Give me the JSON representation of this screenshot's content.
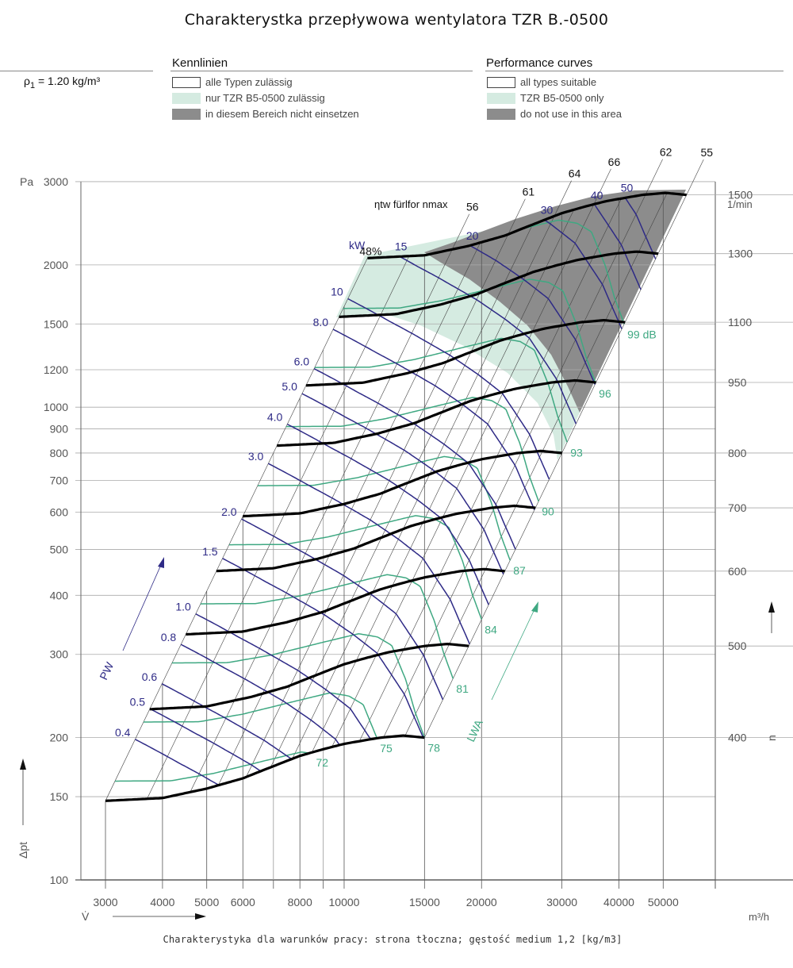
{
  "title": "Charakterystka przepływowa wentylatora TZR B.-0500",
  "density": {
    "label": "ρ",
    "sub": "1",
    "value": " = 1.20 kg/m³"
  },
  "legend_de": {
    "heading": "Kennlinien",
    "items": [
      {
        "label": "alle Typen zulässig",
        "color": "#ffffff"
      },
      {
        "label": "nur TZR B5-0500 zulässig",
        "color": "#d5ebe1"
      },
      {
        "label": "in diesem Bereich nicht einsetzen",
        "color": "#8c8c8c"
      }
    ]
  },
  "legend_en": {
    "heading": "Performance curves",
    "items": [
      {
        "label": "all types suitable",
        "color": "#ffffff"
      },
      {
        "label": "TZR B5-0500 only",
        "color": "#d5ebe1"
      },
      {
        "label": "do not use in this area",
        "color": "#8c8c8c"
      }
    ]
  },
  "footer": "Charakterystyka dla warunków pracy: strona tłoczna; gęstość medium 1,2 [kg/m3]",
  "chart_data": {
    "type": "line",
    "title": "Charakterystka przepływowa wentylatora TZR B.-0500",
    "xlabel": "V̇",
    "xunit": "m³/h",
    "ylabel": "Δpt",
    "yunit": "Pa",
    "right_axis_label": "n",
    "right_axis_unit": "1/min",
    "xscale": "log",
    "yscale": "log",
    "xlim": [
      2500,
      80000
    ],
    "ylim": [
      100,
      3000
    ],
    "x_ticks": [
      3000,
      4000,
      5000,
      6000,
      7000,
      8000,
      9000,
      10000,
      15000,
      20000,
      30000,
      40000,
      50000
    ],
    "x_tick_labels": [
      "3000",
      "4000",
      "5000",
      "6000",
      "",
      "8000",
      "",
      "10000",
      "15000",
      "20000",
      "30000",
      "40000",
      "50000"
    ],
    "y_ticks": [
      100,
      150,
      200,
      300,
      400,
      500,
      600,
      700,
      800,
      900,
      1000,
      1200,
      1500,
      2000,
      3000
    ],
    "y_tick_labels": [
      "100",
      "150",
      "200",
      "300",
      "400",
      "500",
      "600",
      "700",
      "800",
      "900",
      "1000",
      "1200",
      "1500",
      "2000",
      "3000"
    ],
    "speeds_rpm": [
      400,
      500,
      600,
      700,
      800,
      950,
      1100,
      1300,
      1500
    ],
    "base_curve_n400": {
      "V": [
        3000,
        4000,
        5000,
        6000,
        7000,
        8000,
        9000,
        10000,
        12000,
        13500,
        15000
      ],
      "p": [
        147,
        149,
        156,
        164,
        174,
        183,
        189,
        194,
        200,
        202,
        200
      ]
    },
    "efficiency_base": {
      "V": [
        3000,
        4600,
        6100,
        7700,
        9400,
        12200,
        15000
      ],
      "eta": [
        0.48,
        0.56,
        0.61,
        0.64,
        0.66,
        0.62,
        0.55
      ]
    },
    "efficiency_title": "ηtw fürlfor nmax",
    "efficiency_labels": [
      "48%",
      "56",
      "61",
      "64",
      "66",
      "62",
      "55"
    ],
    "system_lines_base_V": [
      3000,
      3700,
      4600,
      5300,
      6100,
      6900,
      7700,
      8500,
      9400,
      10800,
      12200,
      13600,
      15000
    ],
    "power_unit": "kW",
    "power_axis_label": "PW",
    "power_kW": [
      0.4,
      0.5,
      0.6,
      0.8,
      1.0,
      1.5,
      2.0,
      3.0,
      4.0,
      5.0,
      6.0,
      8.0,
      10,
      15,
      20,
      30,
      40,
      50
    ],
    "power_labels": [
      "0.4",
      "0.5",
      "0.6",
      "0.8",
      "1.0",
      "1.5",
      "2.0",
      "3.0",
      "4.0",
      "5.0",
      "6.0",
      "8.0",
      "10",
      "15",
      "20",
      "30",
      "40",
      "50"
    ],
    "noise_axis_label": "LWA",
    "noise_dB": [
      72,
      75,
      78,
      81,
      84,
      87,
      90,
      93,
      96,
      99
    ],
    "noise_labels": [
      "72",
      "75",
      "78",
      "81",
      "84",
      "87",
      "90",
      "93",
      "96",
      "99 dB"
    ],
    "noise_base": {
      "V": [
        3000,
        6000,
        8000,
        9000,
        10000,
        11800,
        13500,
        15000
      ],
      "L": [
        71,
        71.3,
        71.8,
        72.3,
        73,
        75,
        76.8,
        78
      ]
    },
    "colors": {
      "speed": "#000000",
      "power": "#2e2a86",
      "noise": "#3fa882",
      "restricted": "#8c8c8c",
      "only_b5": "#d5ebe1"
    }
  }
}
